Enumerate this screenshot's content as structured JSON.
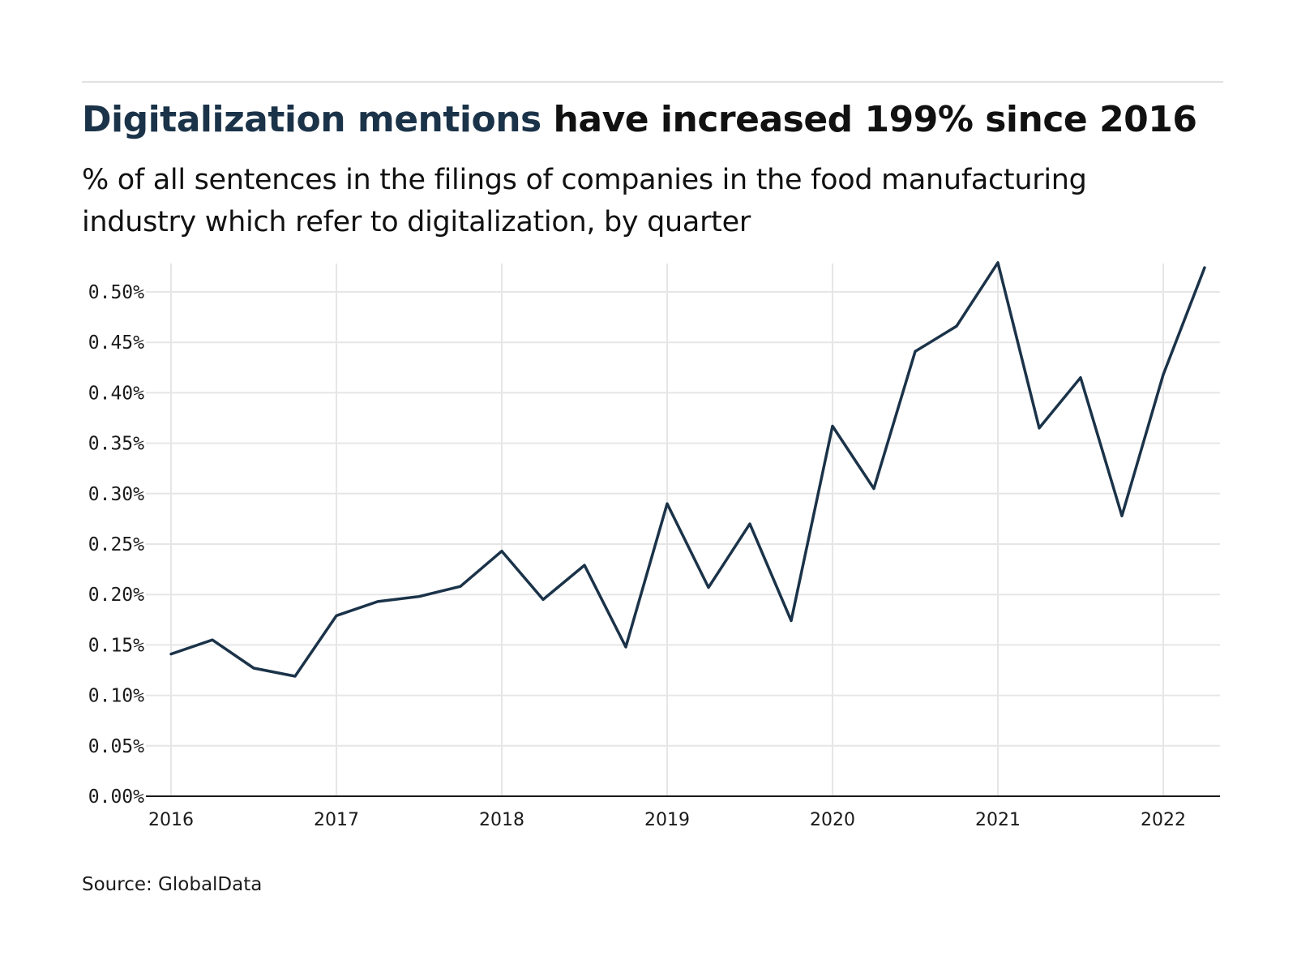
{
  "header": {
    "title_highlight": "Digitalization mentions",
    "title_rest": " have increased 199% since 2016",
    "subtitle": "% of all sentences in the filings of companies in the food manufacturing industry which refer to digitalization, by quarter"
  },
  "footer": {
    "source": "Source: GlobalData"
  },
  "colors": {
    "line": "#1b3349",
    "title_highlight": "#1b3349",
    "grid": "#e6e6e6",
    "axis": "#1a1a1a"
  },
  "chart_data": {
    "type": "line",
    "title": "Digitalization mentions have increased 199% since 2016",
    "xlabel": "",
    "ylabel": "",
    "x_ticks": [
      "2016",
      "2017",
      "2018",
      "2019",
      "2020",
      "2021",
      "2022"
    ],
    "y_ticks": [
      "0.00%",
      "0.05%",
      "0.10%",
      "0.15%",
      "0.20%",
      "0.25%",
      "0.30%",
      "0.35%",
      "0.40%",
      "0.45%",
      "0.50%"
    ],
    "ylim": [
      0,
      0.53
    ],
    "grid": true,
    "legend": "none",
    "x": [
      "2016 Q1",
      "2016 Q2",
      "2016 Q3",
      "2016 Q4",
      "2017 Q1",
      "2017 Q2",
      "2017 Q3",
      "2017 Q4",
      "2018 Q1",
      "2018 Q2",
      "2018 Q3",
      "2018 Q4",
      "2019 Q1",
      "2019 Q2",
      "2019 Q3",
      "2019 Q4",
      "2020 Q1",
      "2020 Q2",
      "2020 Q3",
      "2020 Q4",
      "2021 Q1",
      "2021 Q2",
      "2021 Q3",
      "2021 Q4",
      "2022 Q1",
      "2022 Q2"
    ],
    "series": [
      {
        "values": [
          0.141,
          0.155,
          0.127,
          0.119,
          0.179,
          0.193,
          0.198,
          0.208,
          0.243,
          0.195,
          0.229,
          0.148,
          0.29,
          0.207,
          0.27,
          0.174,
          0.367,
          0.305,
          0.441,
          0.466,
          0.529,
          0.365,
          0.415,
          0.278,
          0.418,
          0.524
        ]
      }
    ]
  }
}
